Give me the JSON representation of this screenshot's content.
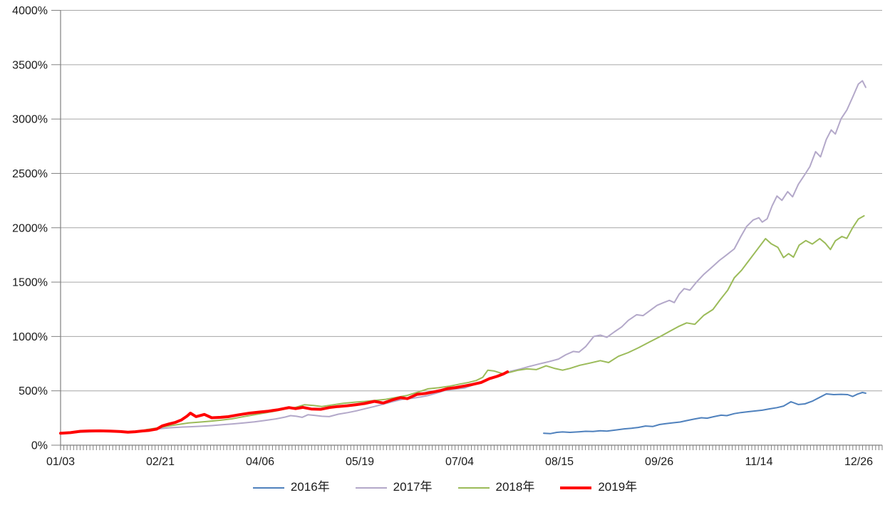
{
  "chart_data": {
    "type": "line",
    "title": "",
    "y_axis": {
      "min": 0,
      "max": 4000,
      "step": 500,
      "unit": "%",
      "tick_labels": [
        "0%",
        "500%",
        "1000%",
        "1500%",
        "2000%",
        "2500%",
        "3000%",
        "3500%",
        "4000%"
      ]
    },
    "x_axis": {
      "tick_labels": [
        "01/03",
        "02/21",
        "04/06",
        "05/19",
        "07/04",
        "08/15",
        "09/26",
        "11/14",
        "12/26"
      ],
      "tick_positions_pct": [
        0,
        12.14,
        24.29,
        36.43,
        48.57,
        60.71,
        72.86,
        85.0,
        97.14
      ],
      "minor_ticks": 253,
      "x_unit": "percent_of_axis"
    },
    "colors": {
      "grid": "#a6a6a6",
      "axis": "#808080",
      "text": "#1a1a1a",
      "background": "#ffffff"
    },
    "legend_position": "bottom",
    "series": [
      {
        "name": "2016年",
        "key": "2016",
        "color": "#4f81bd",
        "stroke_width": 2,
        "points": [
          [
            58.8,
            110
          ],
          [
            59.6,
            106
          ],
          [
            60.4,
            118
          ],
          [
            61.1,
            122
          ],
          [
            62.0,
            118
          ],
          [
            63.1,
            123
          ],
          [
            63.9,
            128
          ],
          [
            64.8,
            126
          ],
          [
            65.7,
            133
          ],
          [
            66.5,
            130
          ],
          [
            67.7,
            141
          ],
          [
            68.6,
            150
          ],
          [
            69.5,
            156
          ],
          [
            70.3,
            163
          ],
          [
            71.2,
            176
          ],
          [
            72.1,
            172
          ],
          [
            72.9,
            190
          ],
          [
            73.6,
            197
          ],
          [
            74.5,
            206
          ],
          [
            75.4,
            213
          ],
          [
            76.2,
            226
          ],
          [
            77.1,
            240
          ],
          [
            78.0,
            252
          ],
          [
            78.7,
            248
          ],
          [
            79.5,
            262
          ],
          [
            80.4,
            276
          ],
          [
            81.1,
            272
          ],
          [
            82.0,
            290
          ],
          [
            82.8,
            300
          ],
          [
            83.7,
            308
          ],
          [
            84.6,
            315
          ],
          [
            85.4,
            322
          ],
          [
            86.3,
            334
          ],
          [
            87.2,
            345
          ],
          [
            88.0,
            360
          ],
          [
            88.9,
            400
          ],
          [
            89.8,
            374
          ],
          [
            90.6,
            380
          ],
          [
            91.5,
            405
          ],
          [
            92.4,
            440
          ],
          [
            93.2,
            472
          ],
          [
            94.1,
            465
          ],
          [
            95.0,
            468
          ],
          [
            95.8,
            465
          ],
          [
            96.4,
            448
          ],
          [
            97.0,
            470
          ],
          [
            97.6,
            485
          ],
          [
            98.0,
            478
          ]
        ]
      },
      {
        "name": "2017年",
        "key": "2017",
        "color": "#b3a8c9",
        "stroke_width": 2,
        "points": [
          [
            0,
            105
          ],
          [
            2.4,
            120
          ],
          [
            4.8,
            126
          ],
          [
            7.3,
            122
          ],
          [
            9.1,
            118
          ],
          [
            10.4,
            135
          ],
          [
            11.9,
            150
          ],
          [
            13.2,
            160
          ],
          [
            14.5,
            166
          ],
          [
            15.8,
            170
          ],
          [
            17.1,
            174
          ],
          [
            18.4,
            180
          ],
          [
            19.7,
            188
          ],
          [
            21.0,
            196
          ],
          [
            22.3,
            205
          ],
          [
            23.6,
            215
          ],
          [
            24.9,
            228
          ],
          [
            26.2,
            242
          ],
          [
            27.3,
            258
          ],
          [
            28.0,
            272
          ],
          [
            28.7,
            266
          ],
          [
            29.4,
            256
          ],
          [
            30.1,
            280
          ],
          [
            31.0,
            274
          ],
          [
            31.8,
            266
          ],
          [
            32.7,
            263
          ],
          [
            33.8,
            285
          ],
          [
            35.0,
            300
          ],
          [
            36.0,
            316
          ],
          [
            37.1,
            336
          ],
          [
            38.2,
            356
          ],
          [
            39.4,
            380
          ],
          [
            40.5,
            402
          ],
          [
            41.6,
            422
          ],
          [
            42.8,
            432
          ],
          [
            43.8,
            443
          ],
          [
            44.8,
            458
          ],
          [
            45.9,
            482
          ],
          [
            46.9,
            506
          ],
          [
            48.0,
            516
          ],
          [
            49.2,
            526
          ],
          [
            50.3,
            556
          ],
          [
            51.4,
            588
          ],
          [
            52.5,
            622
          ],
          [
            53.6,
            645
          ],
          [
            54.7,
            678
          ],
          [
            55.9,
            700
          ],
          [
            57.1,
            725
          ],
          [
            58.3,
            748
          ],
          [
            59.4,
            768
          ],
          [
            60.6,
            792
          ],
          [
            61.5,
            832
          ],
          [
            62.4,
            862
          ],
          [
            63.1,
            856
          ],
          [
            63.9,
            906
          ],
          [
            64.9,
            1000
          ],
          [
            65.7,
            1012
          ],
          [
            66.5,
            992
          ],
          [
            67.4,
            1042
          ],
          [
            68.3,
            1088
          ],
          [
            69.1,
            1148
          ],
          [
            70.1,
            1200
          ],
          [
            70.9,
            1192
          ],
          [
            71.8,
            1242
          ],
          [
            72.6,
            1286
          ],
          [
            73.4,
            1312
          ],
          [
            74.1,
            1332
          ],
          [
            74.7,
            1312
          ],
          [
            75.3,
            1390
          ],
          [
            75.9,
            1440
          ],
          [
            76.6,
            1426
          ],
          [
            77.4,
            1500
          ],
          [
            78.3,
            1572
          ],
          [
            79.4,
            1645
          ],
          [
            80.2,
            1700
          ],
          [
            81.1,
            1752
          ],
          [
            82.0,
            1806
          ],
          [
            82.8,
            1920
          ],
          [
            83.5,
            2012
          ],
          [
            84.3,
            2072
          ],
          [
            85.0,
            2092
          ],
          [
            85.4,
            2052
          ],
          [
            86.0,
            2082
          ],
          [
            86.6,
            2200
          ],
          [
            87.2,
            2292
          ],
          [
            87.8,
            2252
          ],
          [
            88.5,
            2332
          ],
          [
            89.1,
            2285
          ],
          [
            89.8,
            2400
          ],
          [
            90.5,
            2480
          ],
          [
            91.2,
            2562
          ],
          [
            91.9,
            2700
          ],
          [
            92.5,
            2652
          ],
          [
            93.2,
            2812
          ],
          [
            93.8,
            2900
          ],
          [
            94.3,
            2862
          ],
          [
            95.0,
            3002
          ],
          [
            95.7,
            3082
          ],
          [
            96.4,
            3200
          ],
          [
            97.1,
            3322
          ],
          [
            97.6,
            3352
          ],
          [
            98.0,
            3292
          ]
        ]
      },
      {
        "name": "2018年",
        "key": "2018",
        "color": "#9bbb59",
        "stroke_width": 2,
        "points": [
          [
            0,
            108
          ],
          [
            2.4,
            124
          ],
          [
            4.8,
            128
          ],
          [
            7.3,
            122
          ],
          [
            9.1,
            120
          ],
          [
            10.4,
            142
          ],
          [
            11.9,
            160
          ],
          [
            13.0,
            175
          ],
          [
            14.3,
            190
          ],
          [
            15.6,
            205
          ],
          [
            16.9,
            212
          ],
          [
            18.2,
            220
          ],
          [
            19.5,
            230
          ],
          [
            20.8,
            242
          ],
          [
            22.1,
            260
          ],
          [
            23.4,
            278
          ],
          [
            24.7,
            295
          ],
          [
            26.0,
            312
          ],
          [
            27.3,
            332
          ],
          [
            28.6,
            348
          ],
          [
            29.7,
            372
          ],
          [
            30.8,
            365
          ],
          [
            31.8,
            356
          ],
          [
            33.1,
            370
          ],
          [
            34.4,
            385
          ],
          [
            35.7,
            395
          ],
          [
            37.0,
            402
          ],
          [
            38.3,
            412
          ],
          [
            39.6,
            422
          ],
          [
            40.9,
            440
          ],
          [
            42.2,
            458
          ],
          [
            43.5,
            488
          ],
          [
            44.7,
            518
          ],
          [
            46.0,
            528
          ],
          [
            47.3,
            542
          ],
          [
            48.6,
            562
          ],
          [
            49.7,
            578
          ],
          [
            50.6,
            595
          ],
          [
            51.4,
            625
          ],
          [
            52.0,
            690
          ],
          [
            52.8,
            682
          ],
          [
            53.8,
            658
          ],
          [
            54.7,
            670
          ],
          [
            55.7,
            690
          ],
          [
            56.8,
            702
          ],
          [
            57.9,
            695
          ],
          [
            59.1,
            730
          ],
          [
            60.2,
            705
          ],
          [
            61.1,
            690
          ],
          [
            62.0,
            706
          ],
          [
            63.2,
            735
          ],
          [
            64.4,
            755
          ],
          [
            65.7,
            778
          ],
          [
            66.7,
            760
          ],
          [
            67.9,
            818
          ],
          [
            69.1,
            852
          ],
          [
            70.4,
            898
          ],
          [
            71.7,
            950
          ],
          [
            73.0,
            1000
          ],
          [
            74.2,
            1050
          ],
          [
            75.3,
            1095
          ],
          [
            76.2,
            1125
          ],
          [
            77.2,
            1112
          ],
          [
            78.3,
            1195
          ],
          [
            79.4,
            1248
          ],
          [
            80.3,
            1340
          ],
          [
            81.2,
            1425
          ],
          [
            82.0,
            1540
          ],
          [
            82.9,
            1610
          ],
          [
            83.8,
            1700
          ],
          [
            84.8,
            1800
          ],
          [
            85.8,
            1900
          ],
          [
            86.5,
            1852
          ],
          [
            87.3,
            1820
          ],
          [
            88.0,
            1726
          ],
          [
            88.6,
            1762
          ],
          [
            89.2,
            1730
          ],
          [
            89.9,
            1840
          ],
          [
            90.7,
            1882
          ],
          [
            91.5,
            1850
          ],
          [
            92.4,
            1900
          ],
          [
            93.1,
            1856
          ],
          [
            93.7,
            1800
          ],
          [
            94.3,
            1880
          ],
          [
            95.1,
            1920
          ],
          [
            95.7,
            1902
          ],
          [
            96.4,
            2000
          ],
          [
            97.1,
            2080
          ],
          [
            97.8,
            2110
          ]
        ]
      },
      {
        "name": "2019年",
        "key": "2019",
        "color": "#ff0000",
        "stroke_width": 4,
        "points": [
          [
            0,
            110
          ],
          [
            1.2,
            115
          ],
          [
            2.4,
            128
          ],
          [
            3.5,
            131
          ],
          [
            4.8,
            132
          ],
          [
            6.1,
            130
          ],
          [
            7.3,
            125
          ],
          [
            8.2,
            119
          ],
          [
            9.1,
            124
          ],
          [
            10.0,
            131
          ],
          [
            10.8,
            136
          ],
          [
            11.7,
            148
          ],
          [
            12.4,
            178
          ],
          [
            13.2,
            195
          ],
          [
            14.0,
            210
          ],
          [
            14.7,
            232
          ],
          [
            15.4,
            268
          ],
          [
            15.8,
            295
          ],
          [
            16.5,
            263
          ],
          [
            17.5,
            283
          ],
          [
            18.4,
            252
          ],
          [
            19.5,
            256
          ],
          [
            20.4,
            262
          ],
          [
            21.7,
            280
          ],
          [
            23.0,
            295
          ],
          [
            24.3,
            305
          ],
          [
            25.3,
            313
          ],
          [
            26.5,
            326
          ],
          [
            27.8,
            346
          ],
          [
            28.6,
            336
          ],
          [
            29.5,
            348
          ],
          [
            30.5,
            333
          ],
          [
            31.7,
            330
          ],
          [
            32.7,
            346
          ],
          [
            33.8,
            356
          ],
          [
            34.9,
            363
          ],
          [
            36.0,
            373
          ],
          [
            37.0,
            383
          ],
          [
            38.2,
            403
          ],
          [
            39.3,
            388
          ],
          [
            40.3,
            415
          ],
          [
            41.4,
            438
          ],
          [
            42.2,
            428
          ],
          [
            43.4,
            468
          ],
          [
            44.4,
            476
          ],
          [
            45.4,
            490
          ],
          [
            46.2,
            502
          ],
          [
            47.1,
            520
          ],
          [
            48.1,
            530
          ],
          [
            49.2,
            545
          ],
          [
            50.1,
            558
          ],
          [
            51.2,
            577
          ],
          [
            52.2,
            612
          ],
          [
            53.1,
            632
          ],
          [
            53.9,
            655
          ],
          [
            54.4,
            675
          ]
        ]
      }
    ]
  }
}
